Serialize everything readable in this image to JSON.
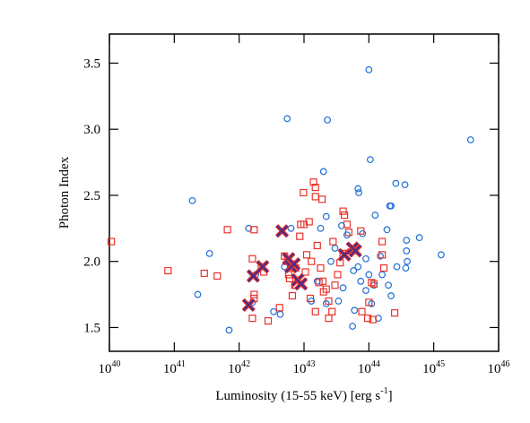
{
  "chart_data": {
    "type": "scatter",
    "xlabel": "Luminosity (15-55 keV) [erg s^-1]",
    "ylabel": "Photon Index",
    "xscale": "log",
    "xlim": [
      1e+40,
      1e+46
    ],
    "xticks": [
      {
        "value": 1e+40,
        "label": "10^40"
      },
      {
        "value": 1e+41,
        "label": "10^41"
      },
      {
        "value": 1e+42,
        "label": "10^42"
      },
      {
        "value": 1e+43,
        "label": "10^43"
      },
      {
        "value": 1e+44,
        "label": "10^44"
      },
      {
        "value": 1e+45,
        "label": "10^45"
      },
      {
        "value": 1e+46,
        "label": "10^46"
      }
    ],
    "ylim": [
      1.32,
      3.72
    ],
    "yticks": [
      1.5,
      {
        "value": 2.0,
        "label": "2.0"
      },
      2.5,
      {
        "value": 3.0,
        "label": "3.0"
      },
      3.5
    ],
    "series": [
      {
        "marker": "circle",
        "color": "#1f6fd6",
        "x": [
          1.9e+41,
          3.5e+41,
          2.3e+41,
          7e+41,
          5.5e+42,
          2.3e+43,
          1e+44,
          3.7e+45,
          1.05e+44,
          2e+43,
          6.8e+43,
          7e+43,
          2.6e+44,
          3.6e+44,
          2.1e+44,
          2.2e+44,
          1.8e+43,
          3.8e+43,
          6.3e+42,
          1.4e+42,
          1.25e+44,
          1.9e+44,
          6e+44,
          3.8e+44,
          1.3e+45,
          3.8e+44,
          3.9e+44,
          3.7e+44,
          2.7e+44,
          1.5e+44,
          9e+43,
          6.8e+43,
          5.8e+43,
          4e+43,
          9e+43,
          1.2e+44,
          6e+43,
          1.4e+44,
          5.6e+43,
          3.4e+42,
          4.3e+42,
          1.6e+42,
          1.8e+42,
          5e+42,
          1.3e+43,
          2.2e+43,
          2.2e+44,
          2e+44,
          8e+43,
          2.2e+43,
          3.4e+43,
          1.6e+43,
          2.6e+43,
          3e+43,
          1e+44,
          1.1e+44,
          7.5e+43,
          1.6e+44,
          4.6e+43
        ],
        "y": [
          2.46,
          2.06,
          1.75,
          1.48,
          3.08,
          3.07,
          3.45,
          2.92,
          2.77,
          2.68,
          2.55,
          2.52,
          2.59,
          2.58,
          2.42,
          2.42,
          2.25,
          2.27,
          2.25,
          2.25,
          2.35,
          2.24,
          2.18,
          2.16,
          2.05,
          2.08,
          2.0,
          1.95,
          1.96,
          2.04,
          2.02,
          1.96,
          1.93,
          1.8,
          1.78,
          1.82,
          1.63,
          1.57,
          1.51,
          1.62,
          1.6,
          1.69,
          1.9,
          1.96,
          1.7,
          1.68,
          1.74,
          1.82,
          2.21,
          2.34,
          1.7,
          1.85,
          2.0,
          2.1,
          1.9,
          1.68,
          1.85,
          1.9,
          2.2
        ]
      },
      {
        "marker": "square",
        "color": "#e8332a",
        "x": [
          1.07e+40,
          8e+40,
          2.9e+41,
          4.6e+41,
          6.6e+41,
          1.7e+42,
          1.6e+42,
          2.2e+42,
          2.4e+42,
          1.7e+42,
          1.7e+42,
          2.8e+42,
          1.6e+42,
          4.2e+42,
          6.6e+42,
          7.2e+42,
          7.4e+42,
          5e+42,
          5.6e+42,
          6.3e+42,
          8.6e+42,
          8.9e+42,
          9.8e+42,
          1.4e+43,
          1.5e+43,
          1.5e+43,
          1.9e+43,
          1e+43,
          1.2e+43,
          1.1e+43,
          1.3e+43,
          1.05e+43,
          1.25e+43,
          1.5e+43,
          2.2e+43,
          2.4e+43,
          2.7e+43,
          3.3e+43,
          3.6e+43,
          4e+43,
          4e+43,
          4.2e+43,
          4.6e+43,
          4.9e+43,
          7.5e+43,
          1.6e+44,
          1.6e+44,
          1.7e+44,
          1.1e+44,
          1e+44,
          7.8e+43,
          9.6e+43,
          1.15e+44,
          2.5e+44,
          1.2e+44,
          1.8e+43,
          1.95e+43,
          2e+43,
          2.4e+43,
          1.7e+43,
          7.5e+42,
          5.8e+42,
          6e+42,
          3e+43,
          2.8e+43,
          1.6e+43
        ],
        "y": [
          2.15,
          1.93,
          1.91,
          1.89,
          2.24,
          2.24,
          2.02,
          1.96,
          1.92,
          1.75,
          1.72,
          1.55,
          1.57,
          1.65,
          1.74,
          1.82,
          1.95,
          2.04,
          2.01,
          1.96,
          2.19,
          2.28,
          2.52,
          2.6,
          2.56,
          2.49,
          2.47,
          2.28,
          2.3,
          2.05,
          2.0,
          1.92,
          1.72,
          1.62,
          1.79,
          1.7,
          1.62,
          1.9,
          1.99,
          2.06,
          2.38,
          2.35,
          2.28,
          2.22,
          2.23,
          2.15,
          2.05,
          1.95,
          1.84,
          1.69,
          1.62,
          1.57,
          1.56,
          1.61,
          1.83,
          1.95,
          1.85,
          1.77,
          1.57,
          1.84,
          1.82,
          1.9,
          1.87,
          1.82,
          2.15,
          2.12
        ]
      },
      {
        "marker": "x",
        "color": "#4b2a8a",
        "x": [
          4.6e+42,
          1.65e+42,
          2.3e+42,
          1.4e+42,
          5.8e+42,
          6.3e+42,
          7e+42,
          8e+42,
          9e+42,
          4.2e+43,
          5.6e+43,
          6.2e+43
        ],
        "y": [
          2.23,
          1.89,
          1.96,
          1.67,
          2.02,
          1.96,
          1.98,
          1.86,
          1.83,
          2.05,
          2.1,
          2.08
        ]
      }
    ]
  }
}
